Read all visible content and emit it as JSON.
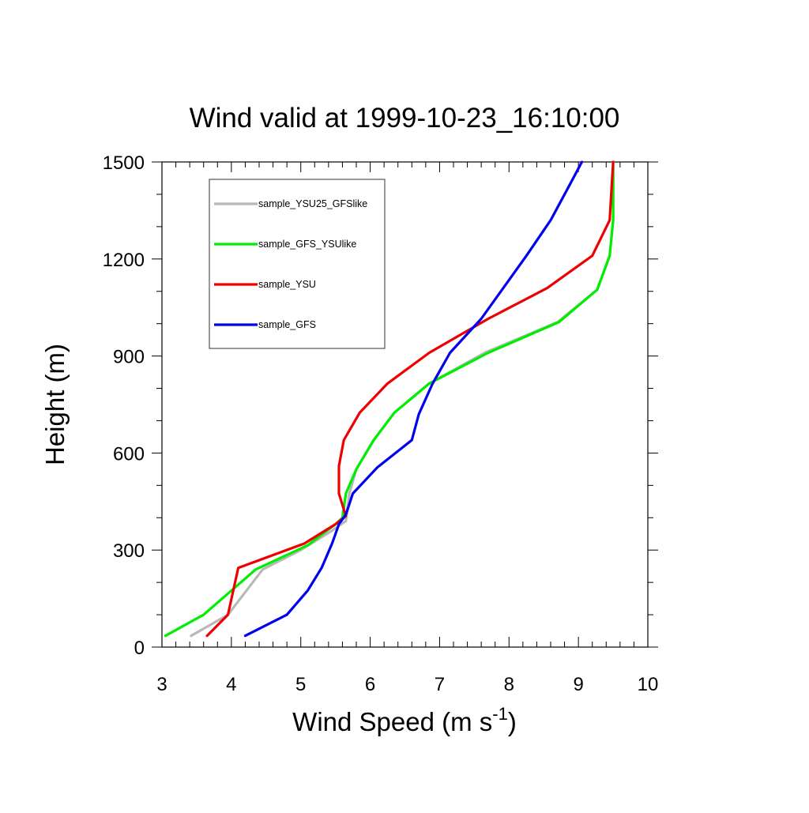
{
  "chart_data": {
    "type": "line",
    "title": "Wind valid at 1999-10-23_16:10:00",
    "xlabel": "Wind Speed (m s",
    "xlabel_unit_exponent": "-1",
    "xlabel_close": ")",
    "ylabel": "Height (m)",
    "xlim": [
      3,
      10
    ],
    "ylim": [
      0,
      1500
    ],
    "xticks": [
      3,
      4,
      5,
      6,
      7,
      8,
      9,
      10
    ],
    "yticks": [
      0,
      300,
      600,
      900,
      1200,
      1500
    ],
    "grid": false,
    "legend_position": "top-left",
    "series": [
      {
        "name": "sample_YSU25_GFSlike",
        "color": "#b8b8b8",
        "points": [
          [
            3.42,
            35
          ],
          [
            3.95,
            100
          ],
          [
            4.45,
            240
          ],
          [
            5.0,
            300
          ],
          [
            5.45,
            360
          ],
          [
            5.65,
            390
          ],
          [
            5.7,
            475
          ],
          [
            5.8,
            550
          ],
          [
            6.05,
            640
          ],
          [
            6.35,
            725
          ],
          [
            6.85,
            815
          ],
          [
            7.65,
            910
          ],
          [
            8.7,
            1005
          ],
          [
            9.27,
            1105
          ],
          [
            9.45,
            1210
          ],
          [
            9.5,
            1320
          ],
          [
            9.5,
            1500
          ]
        ]
      },
      {
        "name": "sample_GFS_YSUlike",
        "color": "#00ee00",
        "points": [
          [
            3.05,
            35
          ],
          [
            3.6,
            100
          ],
          [
            4.35,
            240
          ],
          [
            5.1,
            315
          ],
          [
            5.5,
            380
          ],
          [
            5.6,
            400
          ],
          [
            5.65,
            475
          ],
          [
            5.8,
            550
          ],
          [
            6.05,
            640
          ],
          [
            6.35,
            725
          ],
          [
            6.85,
            815
          ],
          [
            7.7,
            910
          ],
          [
            8.72,
            1005
          ],
          [
            9.27,
            1105
          ],
          [
            9.45,
            1210
          ],
          [
            9.5,
            1320
          ],
          [
            9.5,
            1500
          ]
        ]
      },
      {
        "name": "sample_YSU",
        "color": "#ee0000",
        "points": [
          [
            3.65,
            35
          ],
          [
            3.95,
            100
          ],
          [
            4.1,
            245
          ],
          [
            5.05,
            320
          ],
          [
            5.5,
            380
          ],
          [
            5.65,
            405
          ],
          [
            5.55,
            475
          ],
          [
            5.55,
            560
          ],
          [
            5.62,
            640
          ],
          [
            5.85,
            725
          ],
          [
            6.25,
            815
          ],
          [
            6.85,
            910
          ],
          [
            7.7,
            1015
          ],
          [
            8.55,
            1110
          ],
          [
            9.2,
            1210
          ],
          [
            9.45,
            1320
          ],
          [
            9.5,
            1500
          ]
        ]
      },
      {
        "name": "sample_GFS",
        "color": "#0000ee",
        "points": [
          [
            4.2,
            35
          ],
          [
            4.8,
            100
          ],
          [
            5.1,
            175
          ],
          [
            5.3,
            245
          ],
          [
            5.45,
            320
          ],
          [
            5.55,
            380
          ],
          [
            5.65,
            410
          ],
          [
            5.75,
            475
          ],
          [
            6.1,
            555
          ],
          [
            6.6,
            640
          ],
          [
            6.7,
            720
          ],
          [
            6.9,
            815
          ],
          [
            7.15,
            910
          ],
          [
            7.6,
            1015
          ],
          [
            8.25,
            1210
          ],
          [
            8.6,
            1320
          ],
          [
            8.9,
            1440
          ],
          [
            9.05,
            1500
          ]
        ]
      }
    ]
  }
}
